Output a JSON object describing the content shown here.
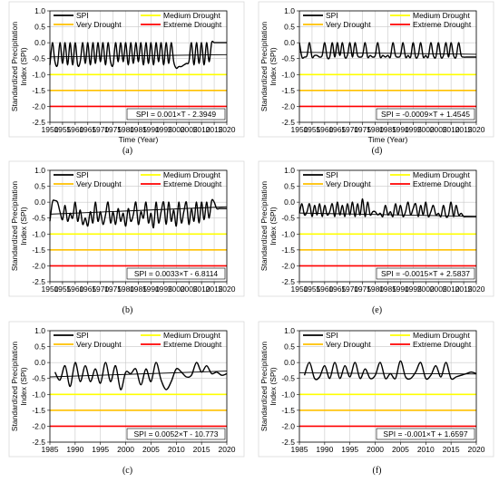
{
  "figure": {
    "y_tick_labels": [
      "1.0",
      "0.5",
      "0.0",
      "-0.5",
      "-1.0",
      "-1.5",
      "-2.0",
      "-2.5"
    ],
    "legend": {
      "spi": "SPI",
      "medium": "Medium Drought",
      "very": "Very Drought",
      "extreme": "Extreme Drought"
    },
    "colors": {
      "spi": "#000000",
      "medium": "#ffff00",
      "very": "#ffc000",
      "extreme": "#ff0000",
      "trend": "#000000",
      "grid": "#c8c8c8"
    }
  },
  "chart_data": [
    {
      "panel": "(a)",
      "type": "line",
      "ylabel": "Standardized Precipitation Index (SPI)",
      "xlabel": "Time (Year)",
      "xlim": [
        1950,
        2020
      ],
      "ylim": [
        -2.5,
        1.0
      ],
      "x_ticks": [
        1950,
        1955,
        1960,
        1965,
        1970,
        1975,
        1980,
        1985,
        1990,
        1995,
        2000,
        2005,
        2010,
        2015,
        2020
      ],
      "x_tick_labels": [
        "1950",
        "1955",
        "1960",
        "1965",
        "1970",
        "1975",
        "1980",
        "1985",
        "1990",
        "1995",
        "2000",
        "2005",
        "2010",
        "2015",
        "2020"
      ],
      "thresholds": {
        "medium": -1.0,
        "very": -1.5,
        "extreme": -2.0
      },
      "equation": "SPI = 0.001×T - 2.3949",
      "trend": {
        "slope": 0.001,
        "intercept": -2.3949
      },
      "series": [
        {
          "name": "SPI",
          "x": [
            1950,
            1951,
            1952,
            1953,
            1954,
            1955,
            1956,
            1957,
            1958,
            1959,
            1960,
            1961,
            1962,
            1963,
            1964,
            1965,
            1966,
            1967,
            1968,
            1969,
            1970,
            1971,
            1972,
            1973,
            1974,
            1975,
            1976,
            1977,
            1978,
            1979,
            1980,
            1981,
            1982,
            1983,
            1984,
            1985,
            1986,
            1987,
            1988,
            1989,
            1990,
            1991,
            1992,
            1993,
            1994,
            1995,
            1996,
            1997,
            1998,
            1999,
            2000,
            2001,
            2002,
            2003,
            2004,
            2005,
            2006,
            2007,
            2008,
            2009,
            2010,
            2011,
            2012,
            2013,
            2014,
            2015,
            2016,
            2017,
            2018,
            2019,
            2020
          ],
          "y": [
            -0.7,
            0,
            -0.6,
            -0.7,
            0,
            -0.65,
            0,
            -0.7,
            0,
            -0.7,
            0,
            -0.7,
            -0.6,
            0,
            -0.65,
            0,
            -0.7,
            0,
            -0.65,
            0,
            -0.6,
            0,
            -0.7,
            0,
            -0.6,
            -0.7,
            0,
            -0.6,
            0,
            -0.6,
            0,
            -0.7,
            0,
            -0.65,
            0,
            -0.6,
            0,
            -0.7,
            0,
            -0.65,
            0,
            -0.7,
            0,
            -0.6,
            0,
            -0.7,
            0,
            -0.65,
            0,
            -0.6,
            -0.8,
            -0.75,
            -0.75,
            -0.7,
            -0.65,
            -0.6,
            0,
            -0.7,
            0,
            -0.65,
            0,
            -0.7,
            0,
            -0.6,
            0,
            0,
            0,
            0,
            0,
            0,
            0
          ]
        }
      ]
    },
    {
      "panel": "(b)",
      "type": "line",
      "ylabel": "Standardized Precipitation Index (SPI)",
      "xlabel": "",
      "xlim": [
        1950,
        2020
      ],
      "ylim": [
        -2.5,
        1.0
      ],
      "x_ticks": [
        1950,
        1955,
        1960,
        1965,
        1970,
        1975,
        1980,
        1985,
        1990,
        1995,
        2000,
        2005,
        2010,
        2015,
        2020
      ],
      "x_tick_labels": [
        "1950",
        "1955",
        "1960",
        "1965",
        "1970",
        "1975",
        "1980",
        "1985",
        "1990",
        "1995",
        "2000",
        "2005",
        "2010",
        "2015",
        "2020"
      ],
      "thresholds": {
        "medium": -1.0,
        "very": -1.5,
        "extreme": -2.0
      },
      "equation": "SPI = 0.0033×T - 6.8114",
      "trend": {
        "slope": 0.0033,
        "intercept": -6.8114
      },
      "series": [
        {
          "name": "SPI",
          "x": [
            1950,
            1951,
            1952,
            1953,
            1954,
            1955,
            1956,
            1957,
            1958,
            1959,
            1960,
            1961,
            1962,
            1963,
            1964,
            1965,
            1966,
            1967,
            1968,
            1969,
            1970,
            1971,
            1972,
            1973,
            1974,
            1975,
            1976,
            1977,
            1978,
            1979,
            1980,
            1981,
            1982,
            1983,
            1984,
            1985,
            1986,
            1987,
            1988,
            1989,
            1990,
            1991,
            1992,
            1993,
            1994,
            1995,
            1996,
            1997,
            1998,
            1999,
            2000,
            2001,
            2002,
            2003,
            2004,
            2005,
            2006,
            2007,
            2008,
            2009,
            2010,
            2011,
            2012,
            2013,
            2014,
            2015,
            2016,
            2017,
            2018,
            2019,
            2020
          ],
          "y": [
            -0.6,
            0,
            0.05,
            0,
            -0.3,
            -0.55,
            -0.1,
            -0.6,
            -0.35,
            -0.5,
            0,
            -0.6,
            -0.25,
            -0.7,
            -0.5,
            -0.75,
            -0.3,
            -0.65,
            0,
            -0.6,
            -0.3,
            -0.7,
            -0.4,
            0,
            -0.65,
            -0.3,
            -0.7,
            -0.2,
            -0.6,
            -0.35,
            -0.75,
            -0.2,
            -0.6,
            -0.4,
            0,
            -0.7,
            -0.3,
            -0.5,
            0,
            -0.65,
            -0.35,
            -0.8,
            0,
            -0.65,
            -0.3,
            0,
            -0.7,
            0,
            -0.6,
            -0.25,
            -0.75,
            0,
            -0.65,
            -0.3,
            0,
            -0.7,
            -0.2,
            -0.6,
            0,
            -0.65,
            0,
            -0.55,
            0,
            -0.5,
            0.05,
            0,
            -0.2,
            -0.2,
            -0.2,
            -0.2,
            -0.2
          ]
        }
      ]
    },
    {
      "panel": "(c)",
      "type": "line",
      "ylabel": "Standardized Precipitation Index (SPI)",
      "xlabel": "",
      "xlim": [
        1985,
        2020
      ],
      "ylim": [
        -2.5,
        1.0
      ],
      "x_ticks": [
        1985,
        1990,
        1995,
        2000,
        2005,
        2010,
        2015,
        2020
      ],
      "x_tick_labels": [
        "1985",
        "1990",
        "1995",
        "2000",
        "2005",
        "2010",
        "2015",
        "2020"
      ],
      "thresholds": {
        "medium": -1.0,
        "very": -1.5,
        "extreme": -2.0
      },
      "equation": "SPI = 0.0052×T - 10.773",
      "trend": {
        "slope": 0.0052,
        "intercept": -10.773
      },
      "series": [
        {
          "name": "SPI",
          "x": [
            1986,
            1987,
            1988,
            1989,
            1990,
            1991,
            1992,
            1993,
            1994,
            1995,
            1996,
            1997,
            1998,
            1999,
            2000,
            2001,
            2002,
            2003,
            2004,
            2005,
            2006,
            2007,
            2008,
            2009,
            2010,
            2011,
            2012,
            2013,
            2014,
            2015,
            2016,
            2017,
            2018,
            2019,
            2020
          ],
          "y": [
            -0.3,
            -0.55,
            -0.1,
            -0.75,
            0,
            -0.6,
            -0.1,
            -0.6,
            -0.2,
            -0.65,
            0,
            -0.6,
            -0.1,
            -0.85,
            -0.3,
            -0.35,
            -0.2,
            -0.7,
            -0.2,
            -0.6,
            0,
            -0.55,
            -0.85,
            -0.6,
            -0.2,
            -0.3,
            -0.45,
            -0.4,
            0,
            -0.3,
            -0.1,
            -0.35,
            -0.3,
            -0.4,
            -0.35
          ]
        }
      ]
    },
    {
      "panel": "(d)",
      "type": "line",
      "ylabel": "Standardized Precipitation Index (SPI)",
      "xlabel": "Time (Year)",
      "xlim": [
        1950,
        2020
      ],
      "ylim": [
        -2.5,
        1.0
      ],
      "x_ticks": [
        1950,
        1955,
        1960,
        1965,
        1970,
        1975,
        1980,
        1985,
        1990,
        1995,
        2000,
        2005,
        2010,
        2015,
        2020
      ],
      "x_tick_labels": [
        "1950",
        "1955",
        "1960",
        "1965",
        "1970",
        "1975",
        "1980",
        "1985",
        "1990",
        "1995",
        "2000",
        "2005",
        "2010",
        "2015",
        "2020"
      ],
      "thresholds": {
        "medium": -1.0,
        "very": -1.5,
        "extreme": -2.0
      },
      "equation": "SPI = -0.0009×T + 1.4545",
      "trend": {
        "slope": -0.0009,
        "intercept": 1.4545
      },
      "series": [
        {
          "name": "SPI",
          "x": [
            1950,
            1951,
            1952,
            1953,
            1954,
            1955,
            1956,
            1957,
            1958,
            1959,
            1960,
            1961,
            1962,
            1963,
            1964,
            1965,
            1966,
            1967,
            1968,
            1969,
            1970,
            1971,
            1972,
            1973,
            1974,
            1975,
            1976,
            1977,
            1978,
            1979,
            1980,
            1981,
            1982,
            1983,
            1984,
            1985,
            1986,
            1987,
            1988,
            1989,
            1990,
            1991,
            1992,
            1993,
            1994,
            1995,
            1996,
            1997,
            1998,
            1999,
            2000,
            2001,
            2002,
            2003,
            2004,
            2005,
            2006,
            2007,
            2008,
            2009,
            2010,
            2011,
            2012,
            2013,
            2014,
            2015,
            2016,
            2017,
            2018,
            2019,
            2020
          ],
          "y": [
            0,
            -0.45,
            -0.45,
            -0.4,
            0,
            -0.45,
            -0.4,
            -0.4,
            -0.45,
            -0.4,
            0,
            -0.45,
            -0.45,
            0,
            -0.45,
            0,
            -0.4,
            0,
            -0.45,
            -0.4,
            0,
            -0.45,
            0,
            -0.4,
            -0.45,
            -0.4,
            0,
            -0.45,
            -0.4,
            -0.45,
            -0.4,
            0,
            -0.45,
            -0.4,
            -0.45,
            -0.4,
            -0.45,
            0,
            -0.4,
            -0.45,
            -0.4,
            0,
            -0.45,
            -0.4,
            -0.45,
            0,
            -0.45,
            -0.4,
            0,
            -0.45,
            -0.4,
            -0.45,
            0,
            -0.4,
            -0.45,
            0,
            -0.45,
            -0.4,
            0,
            -0.45,
            0,
            -0.4,
            -0.45,
            0,
            -0.4,
            -0.45,
            -0.45,
            -0.45,
            -0.45,
            -0.45,
            -0.45
          ]
        }
      ]
    },
    {
      "panel": "(e)",
      "type": "line",
      "ylabel": "Standardized Precipitation Index (SPI)",
      "xlabel": "",
      "xlim": [
        1950,
        2020
      ],
      "ylim": [
        -2.5,
        1.0
      ],
      "x_ticks": [
        1950,
        1955,
        1960,
        1965,
        1970,
        1975,
        1980,
        1985,
        1990,
        1995,
        2000,
        2005,
        2010,
        2015,
        2020
      ],
      "x_tick_labels": [
        "1950",
        "1955",
        "1960",
        "1965",
        "1970",
        "1975",
        "1980",
        "1985",
        "1990",
        "1995",
        "2000",
        "2005",
        "2010",
        "2015",
        "2020"
      ],
      "thresholds": {
        "medium": -1.0,
        "very": -1.5,
        "extreme": -2.0
      },
      "equation": "SPI = -0.0015×T + 2.5837",
      "trend": {
        "slope": -0.0015,
        "intercept": 2.5837
      },
      "series": [
        {
          "name": "SPI",
          "x": [
            1950,
            1951,
            1952,
            1953,
            1954,
            1955,
            1956,
            1957,
            1958,
            1959,
            1960,
            1961,
            1962,
            1963,
            1964,
            1965,
            1966,
            1967,
            1968,
            1969,
            1970,
            1971,
            1972,
            1973,
            1974,
            1975,
            1976,
            1977,
            1978,
            1979,
            1980,
            1981,
            1982,
            1983,
            1984,
            1985,
            1986,
            1987,
            1988,
            1989,
            1990,
            1991,
            1992,
            1993,
            1994,
            1995,
            1996,
            1997,
            1998,
            1999,
            2000,
            2001,
            2002,
            2003,
            2004,
            2005,
            2006,
            2007,
            2008,
            2009,
            2010,
            2011,
            2012,
            2013,
            2014,
            2015,
            2016,
            2017,
            2018,
            2019,
            2020
          ],
          "y": [
            -0.35,
            -0.05,
            -0.4,
            -0.3,
            -0.05,
            -0.45,
            -0.1,
            -0.4,
            -0.05,
            -0.45,
            -0.1,
            -0.4,
            -0.3,
            -0.05,
            -0.45,
            0,
            -0.4,
            -0.1,
            -0.45,
            -0.05,
            -0.4,
            0,
            -0.45,
            -0.05,
            -0.4,
            0.1,
            -0.45,
            0,
            -0.4,
            -0.3,
            -0.3,
            -0.4,
            -0.35,
            -0.45,
            -0.1,
            -0.4,
            -0.3,
            -0.45,
            -0.05,
            -0.4,
            -0.1,
            -0.45,
            -0.3,
            0,
            -0.4,
            -0.2,
            -0.05,
            -0.45,
            -0.1,
            -0.4,
            0,
            -0.45,
            -0.3,
            -0.1,
            -0.4,
            -0.35,
            -0.45,
            -0.1,
            -0.45,
            -0.4,
            0,
            -0.45,
            -0.1,
            -0.4,
            -0.35,
            -0.45,
            -0.45,
            -0.45,
            -0.45,
            -0.45,
            -0.45
          ]
        }
      ]
    },
    {
      "panel": "(f)",
      "type": "line",
      "ylabel": "Standardized Precipitation Index (SPI)",
      "xlabel": "",
      "xlim": [
        1985,
        2020
      ],
      "ylim": [
        -2.5,
        1.0
      ],
      "x_ticks": [
        1985,
        1990,
        1995,
        2000,
        2005,
        2010,
        2015,
        2020
      ],
      "x_tick_labels": [
        "1985",
        "1990",
        "1995",
        "2000",
        "2005",
        "2010",
        "2015",
        "2020"
      ],
      "thresholds": {
        "medium": -1.0,
        "very": -1.5,
        "extreme": -2.0
      },
      "equation": "SPI = -0.001×T + 1.6597",
      "trend": {
        "slope": -0.001,
        "intercept": 1.6597
      },
      "series": [
        {
          "name": "SPI",
          "x": [
            1986,
            1987,
            1988,
            1989,
            1990,
            1991,
            1992,
            1993,
            1994,
            1995,
            1996,
            1997,
            1998,
            1999,
            2000,
            2001,
            2002,
            2003,
            2004,
            2005,
            2006,
            2007,
            2008,
            2009,
            2010,
            2011,
            2012,
            2013,
            2014,
            2015,
            2016,
            2017,
            2018,
            2019,
            2020
          ],
          "y": [
            -0.4,
            0,
            -0.5,
            -0.45,
            -0.1,
            -0.5,
            0,
            -0.5,
            -0.1,
            -0.45,
            0,
            -0.5,
            -0.2,
            -0.5,
            -0.4,
            0,
            -0.5,
            -0.35,
            -0.5,
            0.05,
            -0.45,
            -0.5,
            -0.3,
            0,
            -0.5,
            -0.4,
            -0.1,
            -0.45,
            0,
            -0.5,
            -0.45,
            -0.4,
            -0.35,
            -0.3,
            -0.35
          ]
        }
      ]
    }
  ]
}
